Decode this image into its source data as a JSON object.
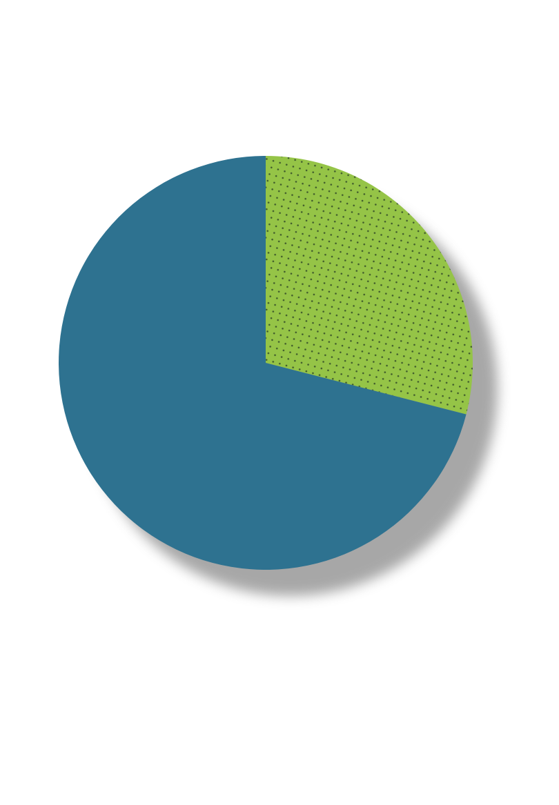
{
  "chart_data": {
    "type": "pie",
    "title": "",
    "start_angle_deg": 0,
    "direction": "clockwise",
    "slices": [
      {
        "value": 29,
        "color": "#95c447",
        "pattern": "dots",
        "pattern_color": "#3f5a2c"
      },
      {
        "value": 71,
        "color": "#2e7290",
        "pattern": "none"
      }
    ],
    "shadow": true
  }
}
